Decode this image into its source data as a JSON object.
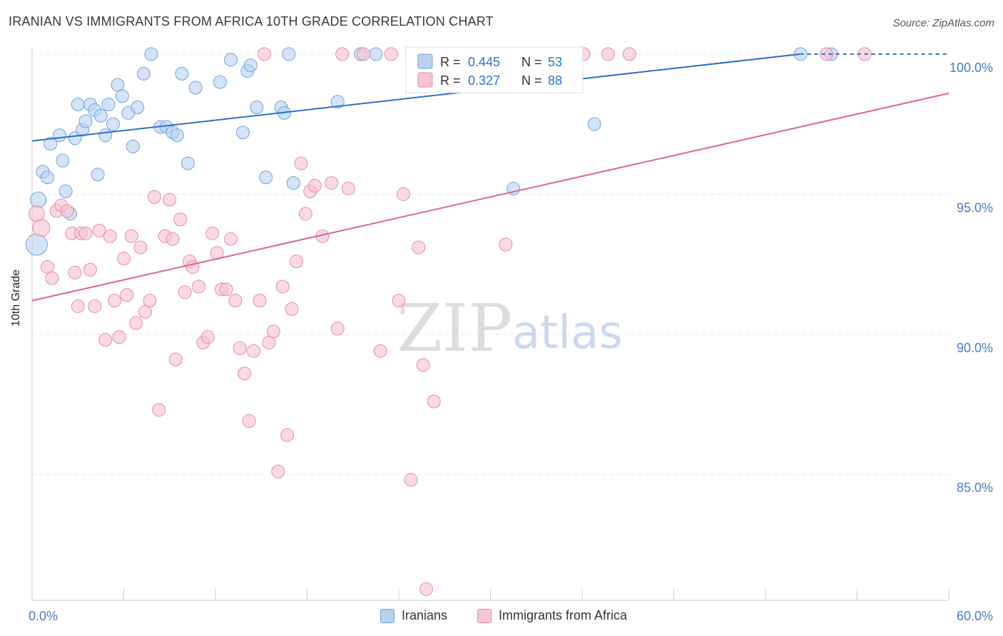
{
  "title": "IRANIAN VS IMMIGRANTS FROM AFRICA 10TH GRADE CORRELATION CHART",
  "source": "Source: ZipAtlas.com",
  "watermark": {
    "zip": "ZIP",
    "atlas": "atlas"
  },
  "colors": {
    "blue": "#6fa3dd",
    "blue_fill": "#b9d2f0",
    "blue_line": "#2f6fce",
    "pink": "#e889a8",
    "pink_fill": "#f6c4d4",
    "pink_line": "#e0668f",
    "tick_text": "#4a7ac9",
    "grid": "#e6e6e6"
  },
  "stats": [
    {
      "r_label": "R =",
      "r": "0.445",
      "n_label": "N =",
      "n": "53"
    },
    {
      "r_label": "R =",
      "r": "0.327",
      "n_label": "N =",
      "n": "88"
    }
  ],
  "chart_data": {
    "type": "scatter",
    "title": "IRANIAN VS IMMIGRANTS FROM AFRICA 10TH GRADE CORRELATION CHART",
    "xlabel": "",
    "ylabel": "10th Grade",
    "xlim": [
      0,
      60
    ],
    "ylim": [
      80.5,
      100.2
    ],
    "x_tick_labels": [
      {
        "value": 0,
        "label": "0.0%"
      },
      {
        "value": 60,
        "label": "60.0%"
      }
    ],
    "y_ticks": [
      {
        "value": 100,
        "label": "100.0%"
      },
      {
        "value": 95,
        "label": "95.0%"
      },
      {
        "value": 90,
        "label": "90.0%"
      },
      {
        "value": 85,
        "label": "85.0%"
      }
    ],
    "x_minor_ticks": [
      0,
      6,
      12,
      18,
      24,
      30,
      36,
      42,
      48,
      54,
      60
    ],
    "grid": true,
    "legend_position": "bottom",
    "series": [
      {
        "name": "Iranians",
        "color": "#6fa3dd",
        "trend": {
          "x": [
            0,
            60
          ],
          "y": [
            96.9,
            100.6
          ]
        },
        "points": [
          [
            0.3,
            93.2
          ],
          [
            0.4,
            94.8
          ],
          [
            0.7,
            95.8
          ],
          [
            1.0,
            95.6
          ],
          [
            1.2,
            96.8
          ],
          [
            1.8,
            97.1
          ],
          [
            2.0,
            96.2
          ],
          [
            2.2,
            95.1
          ],
          [
            2.5,
            94.3
          ],
          [
            2.8,
            97.0
          ],
          [
            3.0,
            98.2
          ],
          [
            3.3,
            97.3
          ],
          [
            3.5,
            97.6
          ],
          [
            3.8,
            98.2
          ],
          [
            4.1,
            98.0
          ],
          [
            4.3,
            95.7
          ],
          [
            4.5,
            97.8
          ],
          [
            4.8,
            97.1
          ],
          [
            5.0,
            98.2
          ],
          [
            5.3,
            97.5
          ],
          [
            5.6,
            98.9
          ],
          [
            5.9,
            98.5
          ],
          [
            6.3,
            97.9
          ],
          [
            6.6,
            96.7
          ],
          [
            6.9,
            98.1
          ],
          [
            7.3,
            99.3
          ],
          [
            7.8,
            100.0
          ],
          [
            8.4,
            97.4
          ],
          [
            8.8,
            97.4
          ],
          [
            9.2,
            97.2
          ],
          [
            9.5,
            97.1
          ],
          [
            9.8,
            99.3
          ],
          [
            10.2,
            96.1
          ],
          [
            10.7,
            98.8
          ],
          [
            12.3,
            99.0
          ],
          [
            13.0,
            99.8
          ],
          [
            13.8,
            97.2
          ],
          [
            14.1,
            99.4
          ],
          [
            14.3,
            99.6
          ],
          [
            14.7,
            98.1
          ],
          [
            15.3,
            95.6
          ],
          [
            16.3,
            98.1
          ],
          [
            16.5,
            97.9
          ],
          [
            16.8,
            100.0
          ],
          [
            17.1,
            95.4
          ],
          [
            20.0,
            98.3
          ],
          [
            21.5,
            100.0
          ],
          [
            22.5,
            100.0
          ],
          [
            27.2,
            100.0
          ],
          [
            31.5,
            95.2
          ],
          [
            36.8,
            97.5
          ],
          [
            50.3,
            100.0
          ],
          [
            52.3,
            100.0
          ]
        ]
      },
      {
        "name": "Immigrants from Africa",
        "color": "#e889a8",
        "trend": {
          "x": [
            0,
            60
          ],
          "y": [
            91.2,
            98.6
          ]
        },
        "points": [
          [
            0.3,
            94.3
          ],
          [
            0.6,
            93.8
          ],
          [
            1.0,
            92.4
          ],
          [
            1.3,
            92.0
          ],
          [
            1.6,
            94.4
          ],
          [
            1.9,
            94.6
          ],
          [
            2.3,
            94.4
          ],
          [
            2.6,
            93.6
          ],
          [
            2.8,
            92.2
          ],
          [
            3.0,
            91.0
          ],
          [
            3.2,
            93.6
          ],
          [
            3.5,
            93.6
          ],
          [
            3.8,
            92.3
          ],
          [
            4.1,
            91.0
          ],
          [
            4.4,
            93.7
          ],
          [
            4.8,
            89.8
          ],
          [
            5.1,
            93.5
          ],
          [
            5.4,
            91.2
          ],
          [
            5.7,
            89.9
          ],
          [
            6.0,
            92.7
          ],
          [
            6.2,
            91.4
          ],
          [
            6.5,
            93.5
          ],
          [
            6.8,
            90.4
          ],
          [
            7.1,
            93.1
          ],
          [
            7.4,
            90.8
          ],
          [
            7.7,
            91.2
          ],
          [
            8.0,
            94.9
          ],
          [
            8.3,
            87.3
          ],
          [
            8.7,
            93.5
          ],
          [
            9.0,
            94.8
          ],
          [
            9.2,
            93.4
          ],
          [
            9.4,
            89.1
          ],
          [
            9.7,
            94.1
          ],
          [
            10.0,
            91.5
          ],
          [
            10.3,
            92.6
          ],
          [
            10.5,
            92.4
          ],
          [
            10.9,
            91.7
          ],
          [
            11.2,
            89.7
          ],
          [
            11.5,
            89.9
          ],
          [
            11.8,
            93.6
          ],
          [
            12.1,
            92.9
          ],
          [
            12.4,
            91.6
          ],
          [
            12.7,
            91.6
          ],
          [
            13.0,
            93.4
          ],
          [
            13.3,
            91.2
          ],
          [
            13.6,
            89.5
          ],
          [
            13.9,
            88.6
          ],
          [
            14.2,
            86.9
          ],
          [
            14.5,
            89.4
          ],
          [
            14.9,
            91.2
          ],
          [
            15.2,
            100.0
          ],
          [
            15.5,
            89.7
          ],
          [
            15.8,
            90.1
          ],
          [
            16.1,
            85.1
          ],
          [
            16.4,
            91.7
          ],
          [
            16.7,
            86.4
          ],
          [
            17.0,
            90.9
          ],
          [
            17.3,
            92.6
          ],
          [
            17.6,
            96.1
          ],
          [
            17.9,
            94.3
          ],
          [
            18.2,
            95.1
          ],
          [
            18.5,
            95.3
          ],
          [
            19.0,
            93.5
          ],
          [
            19.6,
            95.4
          ],
          [
            20.0,
            90.2
          ],
          [
            20.3,
            100.0
          ],
          [
            20.7,
            95.2
          ],
          [
            21.7,
            100.0
          ],
          [
            22.8,
            89.4
          ],
          [
            23.5,
            100.0
          ],
          [
            24.0,
            91.2
          ],
          [
            24.3,
            95.0
          ],
          [
            24.8,
            84.8
          ],
          [
            25.3,
            93.1
          ],
          [
            25.6,
            88.9
          ],
          [
            26.3,
            87.6
          ],
          [
            28.0,
            100.0
          ],
          [
            29.8,
            100.0
          ],
          [
            31.0,
            93.2
          ],
          [
            33.4,
            100.0
          ],
          [
            34.9,
            100.0
          ],
          [
            36.1,
            100.0
          ],
          [
            37.7,
            100.0
          ],
          [
            39.1,
            100.0
          ],
          [
            26.0,
            99.4
          ],
          [
            52.0,
            100.0
          ],
          [
            54.5,
            100.0
          ],
          [
            25.8,
            80.9
          ]
        ]
      }
    ]
  },
  "legend": [
    {
      "label": "Iranians",
      "series": "blue"
    },
    {
      "label": "Immigrants from Africa",
      "series": "pink"
    }
  ]
}
